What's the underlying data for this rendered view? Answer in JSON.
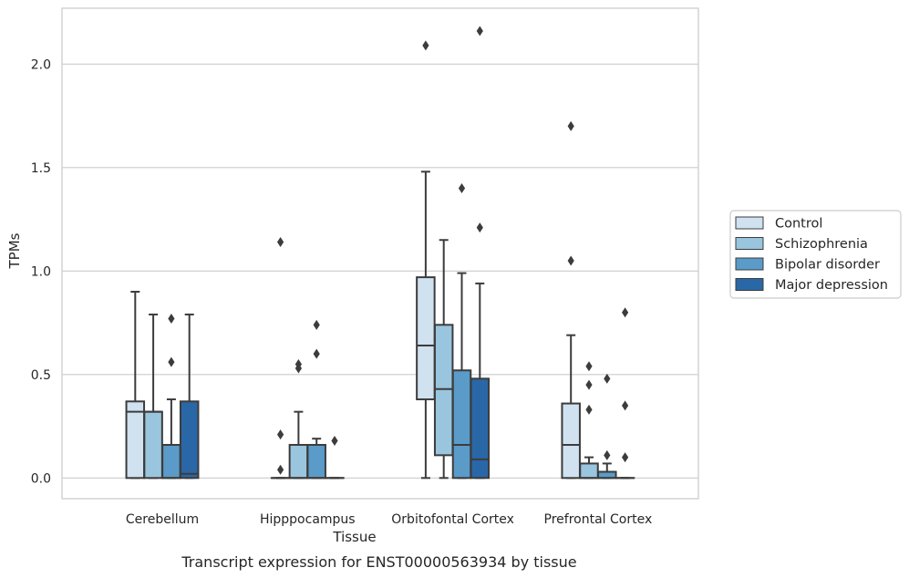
{
  "chart_data": {
    "type": "box",
    "caption": "Transcript expression for ENST00000563934 by tissue",
    "xlabel": "Tissue",
    "ylabel": "TPMs",
    "ylim": [
      -0.1,
      2.27
    ],
    "yticks": [
      0.0,
      0.5,
      1.0,
      1.5,
      2.0
    ],
    "ytick_labels": [
      "0.0",
      "0.5",
      "1.0",
      "1.5",
      "2.0"
    ],
    "grid": true,
    "legend_position": "right",
    "categories": [
      "Cerebellum",
      "Hipppocampus",
      "Orbitofontal Cortex",
      "Prefrontal Cortex"
    ],
    "series": [
      {
        "name": "Control",
        "color": "#d0e1f0",
        "boxes": [
          {
            "q1": 0.0,
            "median": 0.32,
            "q3": 0.37,
            "whisker_low": 0.0,
            "whisker_high": 0.9,
            "outliers": []
          },
          {
            "q1": 0.0,
            "median": 0.0,
            "q3": 0.0,
            "whisker_low": 0.0,
            "whisker_high": 0.0,
            "outliers": [
              0.04,
              0.21,
              1.14
            ]
          },
          {
            "q1": 0.38,
            "median": 0.64,
            "q3": 0.97,
            "whisker_low": 0.0,
            "whisker_high": 1.48,
            "outliers": [
              2.09
            ]
          },
          {
            "q1": 0.0,
            "median": 0.16,
            "q3": 0.36,
            "whisker_low": 0.0,
            "whisker_high": 0.69,
            "outliers": [
              1.05,
              1.7
            ]
          }
        ]
      },
      {
        "name": "Schizophrenia",
        "color": "#9ac5de",
        "boxes": [
          {
            "q1": 0.0,
            "median": 0.32,
            "q3": 0.32,
            "whisker_low": 0.0,
            "whisker_high": 0.79,
            "outliers": []
          },
          {
            "q1": 0.0,
            "median": 0.0,
            "q3": 0.16,
            "whisker_low": 0.0,
            "whisker_high": 0.32,
            "outliers": [
              0.53,
              0.55
            ]
          },
          {
            "q1": 0.11,
            "median": 0.43,
            "q3": 0.74,
            "whisker_low": 0.0,
            "whisker_high": 1.15,
            "outliers": []
          },
          {
            "q1": 0.0,
            "median": 0.0,
            "q3": 0.07,
            "whisker_low": 0.0,
            "whisker_high": 0.1,
            "outliers": [
              0.33,
              0.45,
              0.54
            ]
          }
        ]
      },
      {
        "name": "Bipolar disorder",
        "color": "#5a9bc9",
        "boxes": [
          {
            "q1": 0.0,
            "median": 0.0,
            "q3": 0.16,
            "whisker_low": 0.0,
            "whisker_high": 0.38,
            "outliers": [
              0.56,
              0.77
            ]
          },
          {
            "q1": 0.0,
            "median": 0.0,
            "q3": 0.16,
            "whisker_low": 0.0,
            "whisker_high": 0.19,
            "outliers": [
              0.6,
              0.74
            ]
          },
          {
            "q1": 0.0,
            "median": 0.16,
            "q3": 0.52,
            "whisker_low": 0.0,
            "whisker_high": 0.99,
            "outliers": [
              1.4
            ]
          },
          {
            "q1": 0.0,
            "median": 0.0,
            "q3": 0.03,
            "whisker_low": 0.0,
            "whisker_high": 0.07,
            "outliers": [
              0.11,
              0.48
            ]
          }
        ]
      },
      {
        "name": "Major depression",
        "color": "#2a67a6",
        "boxes": [
          {
            "q1": 0.0,
            "median": 0.02,
            "q3": 0.37,
            "whisker_low": 0.0,
            "whisker_high": 0.79,
            "outliers": []
          },
          {
            "q1": 0.0,
            "median": 0.0,
            "q3": 0.0,
            "whisker_low": 0.0,
            "whisker_high": 0.0,
            "outliers": [
              0.18
            ]
          },
          {
            "q1": 0.0,
            "median": 0.09,
            "q3": 0.48,
            "whisker_low": 0.0,
            "whisker_high": 0.94,
            "outliers": [
              1.21,
              2.16
            ]
          },
          {
            "q1": 0.0,
            "median": 0.0,
            "q3": 0.0,
            "whisker_low": 0.0,
            "whisker_high": 0.0,
            "outliers": [
              0.1,
              0.35,
              0.8
            ]
          }
        ]
      }
    ]
  },
  "colors": {
    "grid": "#cccccc",
    "frame": "#cccccc",
    "edge": "#3c3c3c",
    "text": "#262626"
  }
}
